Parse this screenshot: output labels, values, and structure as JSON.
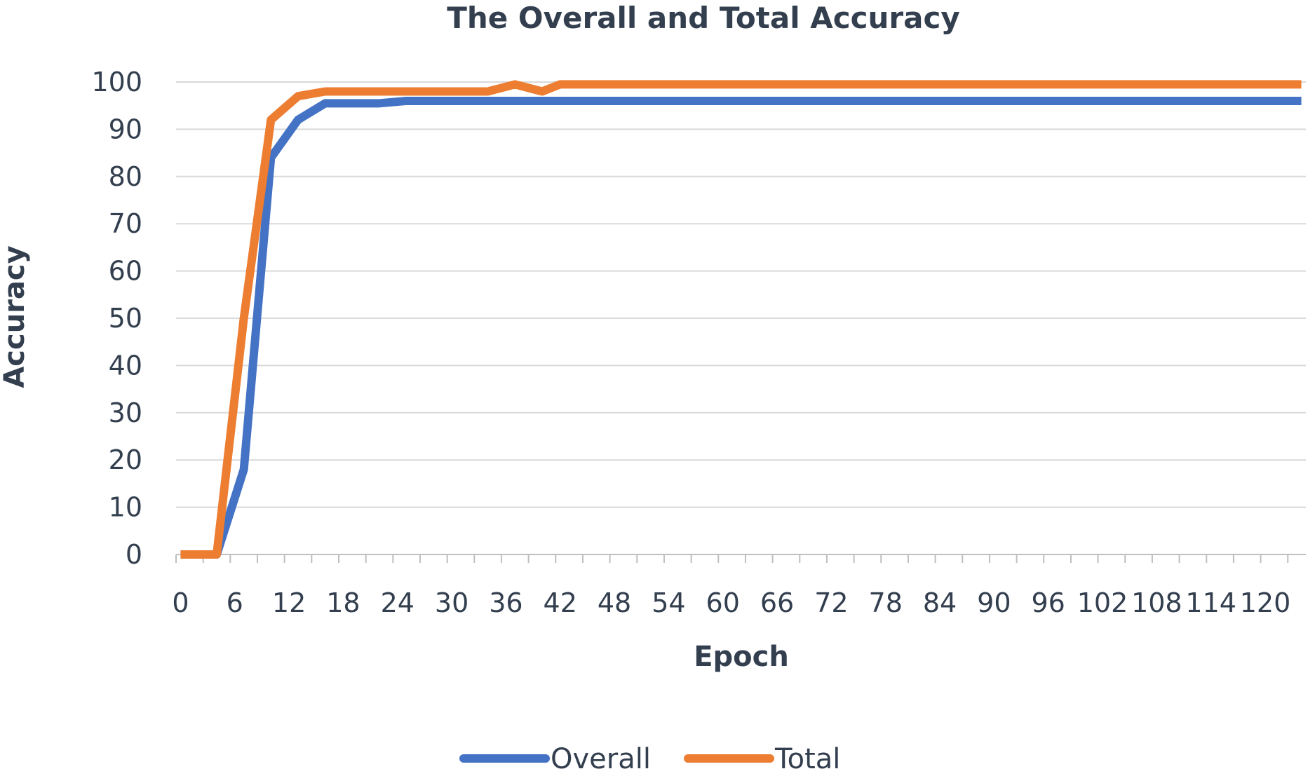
{
  "chart_data": {
    "type": "line",
    "title": "The Overall and Total Accuracy",
    "xlabel": "Epoch",
    "ylabel": "Accuracy",
    "ylim": [
      0,
      100
    ],
    "yticks": [
      0,
      10,
      20,
      30,
      40,
      50,
      60,
      70,
      80,
      90,
      100
    ],
    "xlim": [
      0,
      124
    ],
    "xtick_labels": [
      "0",
      "6",
      "12",
      "18",
      "24",
      "30",
      "36",
      "42",
      "48",
      "54",
      "60",
      "66",
      "72",
      "78",
      "84",
      "90",
      "96",
      "102",
      "108",
      "114",
      "120"
    ],
    "grid": true,
    "legend_position": "bottom",
    "series": [
      {
        "name": "Overall",
        "color": "#4472c4",
        "x": [
          0,
          4,
          7,
          10,
          13,
          16,
          22,
          25,
          124
        ],
        "y": [
          0,
          0,
          18,
          84,
          92,
          95.5,
          95.5,
          96,
          96
        ]
      },
      {
        "name": "Total",
        "color": "#ed7d31",
        "x": [
          0,
          4,
          7,
          10,
          13,
          16,
          20,
          34,
          37,
          40,
          42,
          124
        ],
        "y": [
          0,
          0,
          50,
          92,
          97,
          98,
          98,
          98,
          99.5,
          98,
          99.5,
          99.5
        ]
      }
    ]
  }
}
